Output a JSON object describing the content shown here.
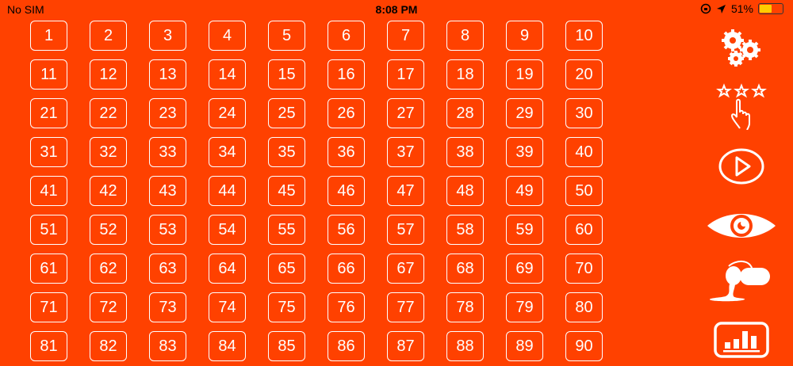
{
  "status_bar": {
    "carrier": "No SIM",
    "time": "8:08 PM",
    "battery": "51%",
    "battery_level": 0.51,
    "battery_color": "#FFCC00"
  },
  "colors": {
    "background": "#FF4100",
    "foreground": "#FFFFFF"
  },
  "levels": [
    "1",
    "2",
    "3",
    "4",
    "5",
    "6",
    "7",
    "8",
    "9",
    "10",
    "11",
    "12",
    "13",
    "14",
    "15",
    "16",
    "17",
    "18",
    "19",
    "20",
    "21",
    "22",
    "23",
    "24",
    "25",
    "26",
    "27",
    "28",
    "29",
    "30",
    "31",
    "32",
    "33",
    "34",
    "35",
    "36",
    "37",
    "38",
    "39",
    "40",
    "41",
    "42",
    "43",
    "44",
    "45",
    "46",
    "47",
    "48",
    "49",
    "50",
    "51",
    "52",
    "53",
    "54",
    "55",
    "56",
    "57",
    "58",
    "59",
    "60",
    "61",
    "62",
    "63",
    "64",
    "65",
    "66",
    "67",
    "68",
    "69",
    "70",
    "71",
    "72",
    "73",
    "74",
    "75",
    "76",
    "77",
    "78",
    "79",
    "80",
    "81",
    "82",
    "83",
    "84",
    "85",
    "86",
    "87",
    "88",
    "89",
    "90"
  ],
  "sidebar": [
    "settings-icon",
    "rate-stars-icon",
    "play-icon",
    "eye-icon",
    "paint-bucket-icon",
    "leaderboard-chart-icon"
  ]
}
